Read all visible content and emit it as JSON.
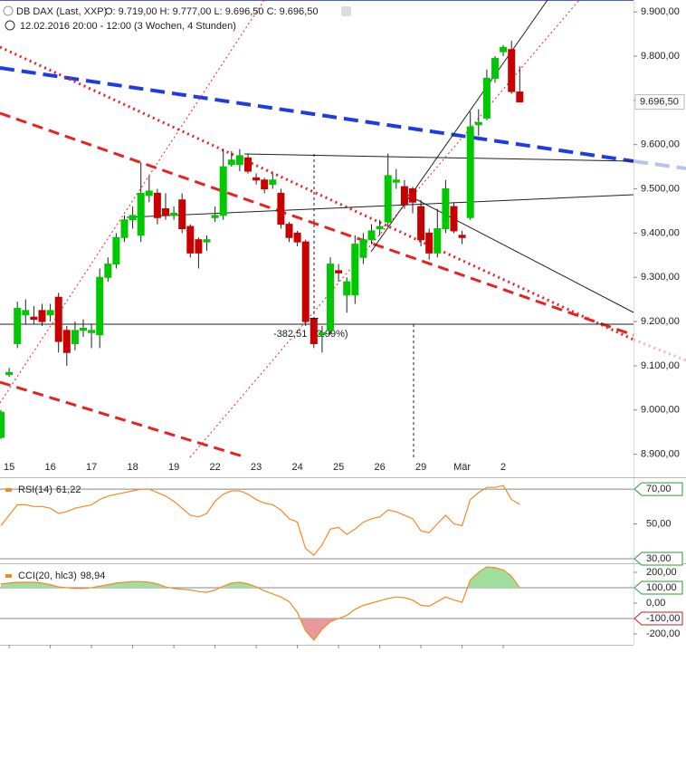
{
  "chart_data": [
    {
      "type": "candlestick",
      "title": "DB DAX (Last, XXP)",
      "subtitle": "O: 9.719,00  H: 9.777,00  L: 9.696,50  C: 9.696,50",
      "period": "12.02.2016 20:00 - 12:00 (3 Wochen, 4 Stunden)",
      "annotation": "-382,51 (-3.99%)",
      "up_color": "#00c800",
      "down_color": "#c80000",
      "categories": [
        null,
        "15",
        null,
        null,
        null,
        null,
        "16",
        null,
        null,
        null,
        null,
        "17",
        null,
        null,
        null,
        null,
        "18",
        null,
        null,
        null,
        null,
        "19",
        null,
        null,
        null,
        null,
        "22",
        null,
        null,
        null,
        null,
        "23",
        null,
        null,
        null,
        null,
        "24",
        null,
        null,
        null,
        null,
        "25",
        null,
        null,
        null,
        null,
        "26",
        null,
        null,
        null,
        null,
        "29",
        null,
        null,
        null,
        null,
        "Mär",
        null,
        null,
        null,
        null,
        "2",
        null,
        null
      ],
      "open": [
        8938,
        9080,
        9150,
        9215,
        9210,
        9225,
        9215,
        9255,
        9180,
        9150,
        9180,
        9175,
        9170,
        9300,
        9330,
        9390,
        9430,
        9395,
        9485,
        9490,
        9455,
        9440,
        9475,
        9415,
        9385,
        9380,
        9435,
        9440,
        9555,
        9555,
        9570,
        9525,
        9520,
        9510,
        9490,
        9420,
        9400,
        9380,
        9205,
        9170,
        9180,
        9315,
        9260,
        9260,
        9345,
        9385,
        9410,
        9425,
        9515,
        9505,
        9500,
        9460,
        9400,
        9355,
        9410,
        9460,
        9395,
        9435,
        9645,
        9660,
        9750,
        9810,
        9815,
        9719
      ],
      "high": [
        9000,
        9095,
        9245,
        9250,
        9235,
        9240,
        9240,
        9265,
        9190,
        9200,
        9205,
        9195,
        9320,
        9345,
        9400,
        9440,
        9460,
        9560,
        9530,
        9500,
        9490,
        9460,
        9490,
        9420,
        9390,
        9395,
        9460,
        9590,
        9585,
        9590,
        9580,
        9535,
        9525,
        9535,
        9500,
        9425,
        9405,
        9385,
        9210,
        9190,
        9345,
        9330,
        9300,
        9395,
        9400,
        9420,
        9430,
        9580,
        9545,
        9520,
        9505,
        9475,
        9410,
        9455,
        9520,
        9470,
        9405,
        9675,
        9680,
        9770,
        9800,
        9825,
        9835,
        9777
      ],
      "low": [
        8935,
        9075,
        9140,
        9195,
        9195,
        9190,
        9200,
        9130,
        9100,
        9135,
        9165,
        9140,
        9140,
        9290,
        9320,
        9380,
        9410,
        9380,
        9470,
        9420,
        9430,
        9430,
        9400,
        9345,
        9320,
        9360,
        9425,
        9430,
        9550,
        9540,
        9535,
        9510,
        9490,
        9500,
        9410,
        9380,
        9370,
        9190,
        9140,
        9130,
        9170,
        9290,
        9220,
        9240,
        9330,
        9375,
        9395,
        9415,
        9500,
        9455,
        9445,
        9370,
        9340,
        9345,
        9400,
        9400,
        9375,
        9430,
        9620,
        9655,
        9740,
        9800,
        9715,
        9696.5
      ],
      "close": [
        8995,
        9085,
        9230,
        9225,
        9205,
        9200,
        9225,
        9155,
        9130,
        9180,
        9185,
        9180,
        9300,
        9330,
        9390,
        9430,
        9440,
        9490,
        9495,
        9435,
        9440,
        9445,
        9410,
        9355,
        9355,
        9385,
        9440,
        9550,
        9565,
        9575,
        9540,
        9520,
        9500,
        9520,
        9420,
        9390,
        9380,
        9200,
        9150,
        9175,
        9330,
        9310,
        9290,
        9375,
        9385,
        9405,
        9415,
        9530,
        9520,
        9465,
        9470,
        9385,
        9355,
        9410,
        9500,
        9405,
        9390,
        9640,
        9650,
        9750,
        9795,
        9820,
        9720,
        9696.5
      ],
      "last_price": {
        "value": 9696.5,
        "label": "9.696,50"
      },
      "ylim": [
        8893,
        9927
      ],
      "yticks": [
        {
          "value": 8900,
          "label": "8.900,00"
        },
        {
          "value": 9000,
          "label": "9.000,00"
        },
        {
          "value": 9100,
          "label": "9.100,00"
        },
        {
          "value": 9200,
          "label": "9.200,00"
        },
        {
          "value": 9300,
          "label": "9.300,00"
        },
        {
          "value": 9400,
          "label": "9.400,00"
        },
        {
          "value": 9500,
          "label": "9.500,00"
        },
        {
          "value": 9600,
          "label": "9.600,00"
        },
        {
          "value": 9700,
          "label": "9.700,00"
        },
        {
          "value": 9800,
          "label": "9.800,00"
        },
        {
          "value": 9900,
          "label": "9.900,00"
        }
      ]
    },
    {
      "type": "line",
      "title": "RSI(14)",
      "last_value_label": "61,22",
      "color": "#f08a24",
      "values": [
        49,
        55,
        61,
        61,
        60,
        60,
        59,
        56,
        57,
        59,
        60,
        61,
        64,
        66,
        67,
        68,
        69,
        70,
        70,
        68,
        66,
        63,
        59,
        55,
        54,
        56,
        63,
        67,
        69,
        69,
        67,
        64,
        62,
        61,
        58,
        53,
        51,
        36,
        32,
        38,
        47,
        48,
        44,
        47,
        51,
        53,
        54,
        58,
        57,
        55,
        53,
        46,
        45,
        50,
        55,
        50,
        49,
        64,
        68,
        71,
        71,
        72,
        64,
        61.22
      ],
      "band": [
        30,
        70
      ],
      "ylim": [
        27.4,
        76.8
      ],
      "yticks": [
        {
          "value": 30,
          "label": "30,00"
        },
        {
          "value": 50,
          "label": "50,00"
        },
        {
          "value": 70,
          "label": "70,00"
        }
      ]
    },
    {
      "type": "line",
      "title": "CCI(20, hlc3)",
      "last_value_label": "98,94",
      "color": "#f08a24",
      "fill_upper_color": "#9fe09f",
      "fill_lower_color": "#e89a9a",
      "values": [
        125,
        130,
        135,
        135,
        135,
        130,
        120,
        105,
        100,
        95,
        95,
        100,
        110,
        120,
        130,
        135,
        140,
        140,
        135,
        125,
        105,
        95,
        90,
        85,
        75,
        70,
        85,
        110,
        130,
        135,
        125,
        105,
        80,
        60,
        40,
        10,
        -60,
        -180,
        -240,
        -170,
        -120,
        -100,
        -80,
        -40,
        -15,
        0,
        15,
        30,
        40,
        35,
        20,
        -15,
        -20,
        10,
        40,
        20,
        5,
        150,
        200,
        235,
        230,
        215,
        175,
        98.94
      ],
      "band": [
        -100,
        100
      ],
      "ylim": [
        -270.6,
        258.8
      ],
      "yticks": [
        {
          "value": -200,
          "label": "-200,00"
        },
        {
          "value": -100,
          "label": "-100,00"
        },
        {
          "value": 0,
          "label": "0,00"
        },
        {
          "value": 100,
          "label": "100,00"
        },
        {
          "value": 200,
          "label": "200,00"
        }
      ]
    }
  ]
}
